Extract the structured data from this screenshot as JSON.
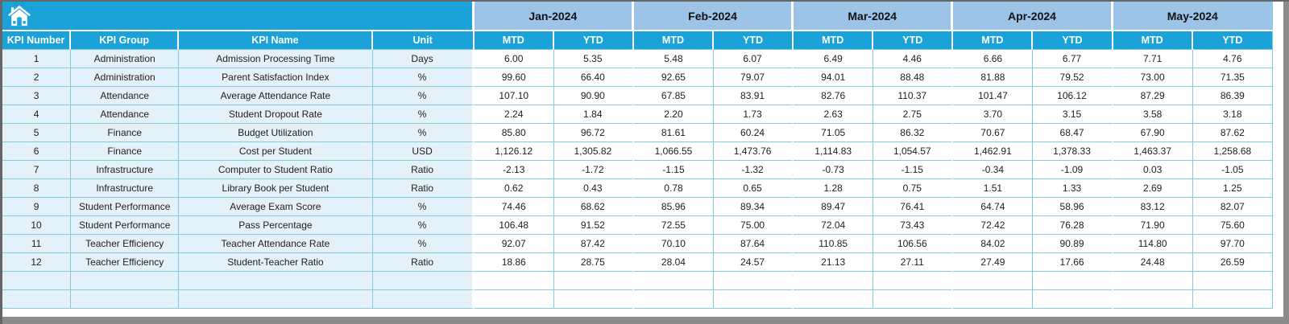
{
  "theme": {
    "accent_cyan": "#1ba3d9",
    "month_band_blue": "#9dc3e6",
    "label_cell_blue": "#e4f1f8",
    "grid_teal": "#7fccdf",
    "frame_gray": "#8c8c8c"
  },
  "header": {
    "home_icon": "home-icon",
    "months": [
      "Jan-2024",
      "Feb-2024",
      "Mar-2024",
      "Apr-2024",
      "May-2024"
    ],
    "sub_headers": [
      "MTD",
      "YTD"
    ],
    "left_columns": [
      "KPI Number",
      "KPI Group",
      "KPI Name",
      "Unit"
    ]
  },
  "table": {
    "empty_row_count": 2,
    "rows": [
      {
        "number": "1",
        "group": "Administration",
        "name": "Admission Processing Time",
        "unit": "Days",
        "values": [
          "6.00",
          "5.35",
          "5.48",
          "6.07",
          "6.49",
          "4.46",
          "6.66",
          "6.77",
          "7.71",
          "4.76"
        ]
      },
      {
        "number": "2",
        "group": "Administration",
        "name": "Parent Satisfaction Index",
        "unit": "%",
        "values": [
          "99.60",
          "66.40",
          "92.65",
          "79.07",
          "94.01",
          "88.48",
          "81.88",
          "79.52",
          "73.00",
          "71.35"
        ]
      },
      {
        "number": "3",
        "group": "Attendance",
        "name": "Average Attendance Rate",
        "unit": "%",
        "values": [
          "107.10",
          "90.90",
          "67.85",
          "83.91",
          "82.76",
          "110.37",
          "101.47",
          "106.12",
          "87.29",
          "86.39"
        ]
      },
      {
        "number": "4",
        "group": "Attendance",
        "name": "Student Dropout Rate",
        "unit": "%",
        "values": [
          "2.24",
          "1.84",
          "2.20",
          "1.73",
          "2.63",
          "2.75",
          "3.70",
          "3.15",
          "3.58",
          "3.18"
        ]
      },
      {
        "number": "5",
        "group": "Finance",
        "name": "Budget Utilization",
        "unit": "%",
        "values": [
          "85.80",
          "96.72",
          "81.61",
          "60.24",
          "71.05",
          "86.32",
          "70.67",
          "68.47",
          "67.90",
          "87.62"
        ]
      },
      {
        "number": "6",
        "group": "Finance",
        "name": "Cost per Student",
        "unit": "USD",
        "values": [
          "1,126.12",
          "1,305.82",
          "1,066.55",
          "1,473.76",
          "1,114.83",
          "1,054.57",
          "1,462.91",
          "1,378.33",
          "1,463.37",
          "1,258.68"
        ]
      },
      {
        "number": "7",
        "group": "Infrastructure",
        "name": "Computer to Student Ratio",
        "unit": "Ratio",
        "values": [
          "-2.13",
          "-1.72",
          "-1.15",
          "-1.32",
          "-0.73",
          "-1.15",
          "-0.34",
          "-1.09",
          "0.03",
          "-1.05"
        ]
      },
      {
        "number": "8",
        "group": "Infrastructure",
        "name": "Library Book per Student",
        "unit": "Ratio",
        "values": [
          "0.62",
          "0.43",
          "0.78",
          "0.65",
          "1.28",
          "0.75",
          "1.51",
          "1.33",
          "2.69",
          "1.25"
        ]
      },
      {
        "number": "9",
        "group": "Student Performance",
        "name": "Average Exam Score",
        "unit": "%",
        "values": [
          "74.46",
          "68.62",
          "85.96",
          "89.34",
          "89.47",
          "76.41",
          "64.74",
          "58.96",
          "83.12",
          "82.07"
        ]
      },
      {
        "number": "10",
        "group": "Student Performance",
        "name": "Pass Percentage",
        "unit": "%",
        "values": [
          "106.48",
          "91.52",
          "72.55",
          "75.00",
          "72.04",
          "73.43",
          "72.42",
          "76.28",
          "71.90",
          "75.60"
        ]
      },
      {
        "number": "11",
        "group": "Teacher Efficiency",
        "name": "Teacher Attendance Rate",
        "unit": "%",
        "values": [
          "92.07",
          "87.42",
          "70.10",
          "87.64",
          "110.85",
          "106.56",
          "84.02",
          "90.89",
          "114.80",
          "97.70"
        ]
      },
      {
        "number": "12",
        "group": "Teacher Efficiency",
        "name": "Student-Teacher Ratio",
        "unit": "Ratio",
        "values": [
          "18.86",
          "28.75",
          "28.04",
          "24.57",
          "21.13",
          "27.11",
          "27.49",
          "17.66",
          "24.48",
          "26.59"
        ]
      }
    ]
  }
}
